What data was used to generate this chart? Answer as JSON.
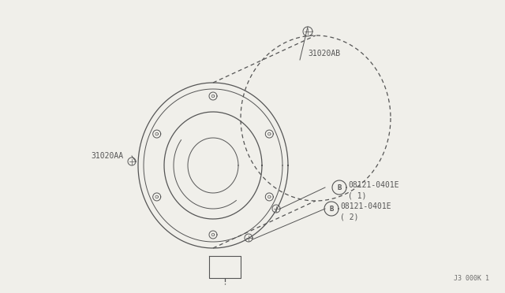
{
  "bg_color": "#f0efea",
  "line_color": "#555555",
  "watermark": "J3 000K 1",
  "font_size": 7,
  "label_31020AB": "31020AB",
  "label_31020AA": "31020AA",
  "label_bolt1": "08121-0401E",
  "label_bolt1b": "( 1)",
  "label_bolt2": "08121-0401E",
  "label_bolt2b": "( 2)"
}
